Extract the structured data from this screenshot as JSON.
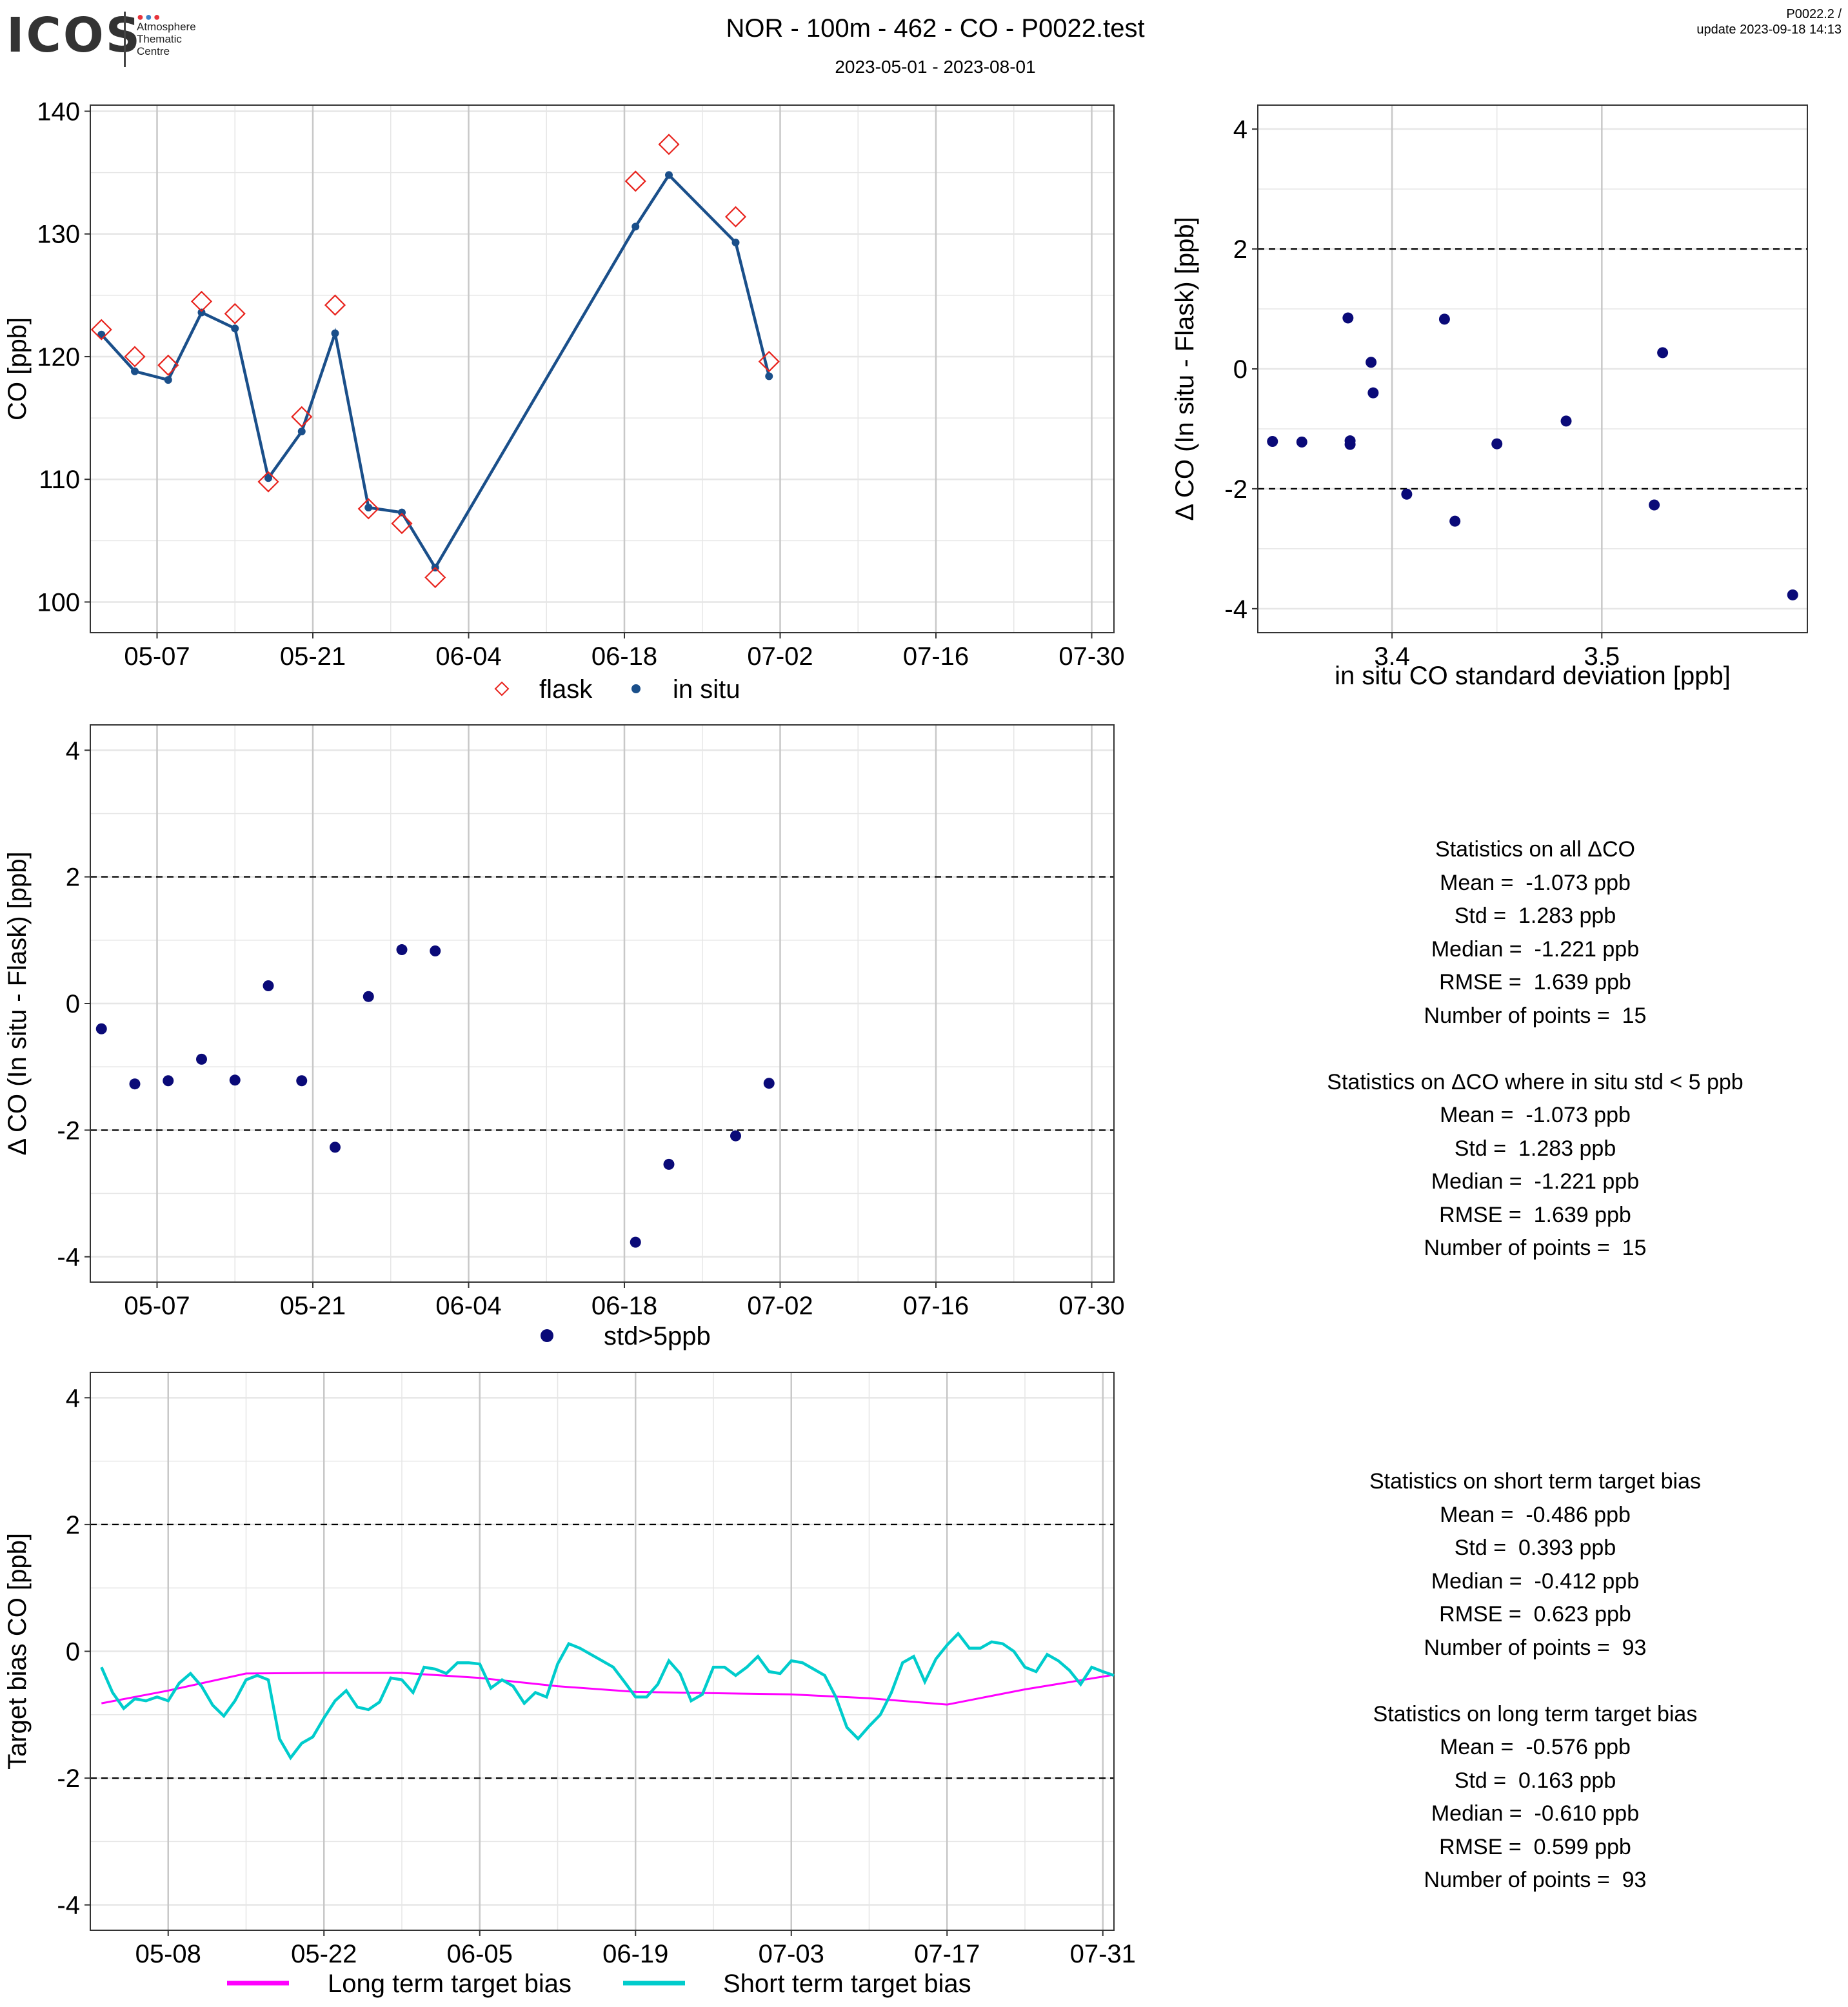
{
  "header": {
    "logo": "ICOS",
    "logo_subtitle": [
      "Atmosphere",
      "Thematic",
      "Centre"
    ],
    "title": "NOR - 100m - 462 - CO - P0022.test",
    "date_range": "2023-05-01 - 2023-08-01",
    "version": "P0022.2 /",
    "update": "update  2023-09-18 14:13"
  },
  "colors": {
    "flask": "#e8221c",
    "in_situ": "#1a4f8a",
    "delta_point": "#0a0a78",
    "long_term": "#ff00ff",
    "short_term": "#00cccc",
    "grid": "#e6e6e6",
    "grid_major": "#c8c8c8"
  },
  "chart_data": [
    {
      "id": "co_timeseries",
      "type": "line",
      "ylabel": "CO [ppb]",
      "xlim": [
        "2023-05-01",
        "2023-08-01"
      ],
      "ylim": [
        97.5,
        140.5
      ],
      "x_ticks": [
        "05-07",
        "05-21",
        "06-04",
        "06-18",
        "07-02",
        "07-16",
        "07-30"
      ],
      "y_ticks": [
        100,
        110,
        120,
        130,
        140
      ],
      "grid": true,
      "legend_position": "bottom",
      "series": [
        {
          "name": "flask",
          "marker": "diamond",
          "line": false,
          "x": [
            "2023-05-02",
            "2023-05-05",
            "2023-05-08",
            "2023-05-11",
            "2023-05-14",
            "2023-05-17",
            "2023-05-20",
            "2023-05-23",
            "2023-05-26",
            "2023-05-29",
            "2023-06-01",
            "2023-06-19",
            "2023-06-22",
            "2023-06-28",
            "2023-07-01"
          ],
          "values": [
            122.2,
            120.0,
            119.3,
            124.5,
            123.5,
            109.8,
            115.1,
            124.2,
            107.6,
            106.4,
            102.0,
            134.3,
            137.3,
            131.4,
            119.6
          ]
        },
        {
          "name": "in situ",
          "marker": "dot",
          "line": true,
          "x": [
            "2023-05-02",
            "2023-05-05",
            "2023-05-08",
            "2023-05-11",
            "2023-05-14",
            "2023-05-17",
            "2023-05-20",
            "2023-05-23",
            "2023-05-26",
            "2023-05-29",
            "2023-06-01",
            "2023-06-19",
            "2023-06-22",
            "2023-06-28",
            "2023-07-01"
          ],
          "values": [
            121.8,
            118.8,
            118.1,
            123.6,
            122.3,
            110.1,
            113.9,
            121.9,
            107.7,
            107.3,
            102.8,
            130.6,
            134.8,
            129.3,
            118.4
          ]
        }
      ]
    },
    {
      "id": "delta_vs_std",
      "type": "scatter",
      "xlabel": "in situ CO standard deviation [ppb]",
      "ylabel": "Δ CO (In situ - Flask) [ppb]",
      "xlim": [
        3.336,
        3.598
      ],
      "ylim": [
        -4.4,
        4.4
      ],
      "x_ticks": [
        3.4,
        3.5
      ],
      "y_ticks": [
        -4,
        -2,
        0,
        2,
        4
      ],
      "reference_lines": [
        2,
        -2
      ],
      "grid": true,
      "points": {
        "x": [
          3.343,
          3.357,
          3.379,
          3.38,
          3.38,
          3.39,
          3.391,
          3.407,
          3.425,
          3.43,
          3.45,
          3.483,
          3.525,
          3.529,
          3.591
        ],
        "y": [
          -1.21,
          -1.22,
          0.85,
          -1.2,
          -1.26,
          0.11,
          -0.4,
          -2.09,
          0.83,
          -2.54,
          -1.25,
          -0.87,
          -2.27,
          0.27,
          -3.77
        ]
      }
    },
    {
      "id": "delta_timeseries",
      "type": "scatter",
      "ylabel": "Δ CO (In situ - Flask) [ppb]",
      "xlim": [
        "2023-05-01",
        "2023-08-01"
      ],
      "ylim": [
        -4.4,
        4.4
      ],
      "x_ticks": [
        "05-07",
        "05-21",
        "06-04",
        "06-18",
        "07-02",
        "07-16",
        "07-30"
      ],
      "y_ticks": [
        -4,
        -2,
        0,
        2,
        4
      ],
      "reference_lines": [
        2,
        -2
      ],
      "grid": true,
      "legend_position": "bottom",
      "series": [
        {
          "name": "std>5ppb",
          "x": [
            "2023-05-02",
            "2023-05-05",
            "2023-05-08",
            "2023-05-11",
            "2023-05-14",
            "2023-05-17",
            "2023-05-20",
            "2023-05-23",
            "2023-05-26",
            "2023-05-29",
            "2023-06-01",
            "2023-06-19",
            "2023-06-22",
            "2023-06-28",
            "2023-07-01"
          ],
          "values": [
            -0.4,
            -1.27,
            -1.22,
            -0.88,
            -1.21,
            0.28,
            -1.22,
            -2.27,
            0.11,
            0.85,
            0.83,
            -3.77,
            -2.54,
            -2.09,
            -1.26
          ]
        }
      ]
    },
    {
      "id": "target_bias",
      "type": "line",
      "ylabel": "Target bias CO [ppb]",
      "xlim": [
        "2023-05-01",
        "2023-08-01"
      ],
      "ylim": [
        -4.4,
        4.4
      ],
      "x_ticks": [
        "05-08",
        "05-22",
        "06-05",
        "06-19",
        "07-03",
        "07-17",
        "07-31"
      ],
      "y_ticks": [
        -4,
        -2,
        0,
        2,
        4
      ],
      "reference_lines": [
        2,
        -2
      ],
      "grid": true,
      "legend_position": "bottom",
      "series": [
        {
          "name": "Long term target bias",
          "x": [
            "2023-05-02",
            "2023-05-08",
            "2023-05-15",
            "2023-05-22",
            "2023-05-29",
            "2023-06-05",
            "2023-06-12",
            "2023-06-19",
            "2023-06-26",
            "2023-07-03",
            "2023-07-10",
            "2023-07-17",
            "2023-07-24",
            "2023-08-01"
          ],
          "values": [
            -0.82,
            -0.62,
            -0.35,
            -0.34,
            -0.34,
            -0.42,
            -0.55,
            -0.64,
            -0.66,
            -0.68,
            -0.74,
            -0.84,
            -0.6,
            -0.37
          ]
        },
        {
          "name": "Short term target bias",
          "x": [
            "2023-05-02",
            "2023-05-03",
            "2023-05-04",
            "2023-05-05",
            "2023-05-06",
            "2023-05-07",
            "2023-05-08",
            "2023-05-09",
            "2023-05-10",
            "2023-05-11",
            "2023-05-12",
            "2023-05-13",
            "2023-05-14",
            "2023-05-15",
            "2023-05-16",
            "2023-05-17",
            "2023-05-18",
            "2023-05-19",
            "2023-05-20",
            "2023-05-21",
            "2023-05-22",
            "2023-05-23",
            "2023-05-24",
            "2023-05-25",
            "2023-05-26",
            "2023-05-27",
            "2023-05-28",
            "2023-05-29",
            "2023-05-30",
            "2023-05-31",
            "2023-06-01",
            "2023-06-02",
            "2023-06-03",
            "2023-06-04",
            "2023-06-05",
            "2023-06-06",
            "2023-06-07",
            "2023-06-08",
            "2023-06-09",
            "2023-06-10",
            "2023-06-11",
            "2023-06-12",
            "2023-06-13",
            "2023-06-14",
            "2023-06-15",
            "2023-06-16",
            "2023-06-17",
            "2023-06-18",
            "2023-06-19",
            "2023-06-20",
            "2023-06-21",
            "2023-06-22",
            "2023-06-23",
            "2023-06-24",
            "2023-06-25",
            "2023-06-26",
            "2023-06-27",
            "2023-06-28",
            "2023-06-29",
            "2023-06-30",
            "2023-07-01",
            "2023-07-02",
            "2023-07-03",
            "2023-07-04",
            "2023-07-05",
            "2023-07-06",
            "2023-07-07",
            "2023-07-08",
            "2023-07-09",
            "2023-07-10",
            "2023-07-11",
            "2023-07-12",
            "2023-07-13",
            "2023-07-14",
            "2023-07-15",
            "2023-07-16",
            "2023-07-17",
            "2023-07-18",
            "2023-07-19",
            "2023-07-20",
            "2023-07-21",
            "2023-07-22",
            "2023-07-23",
            "2023-07-24",
            "2023-07-25",
            "2023-07-26",
            "2023-07-27",
            "2023-07-28",
            "2023-07-29",
            "2023-07-30",
            "2023-07-31",
            "2023-08-01"
          ],
          "values": [
            -0.25,
            -0.65,
            -0.9,
            -0.75,
            -0.78,
            -0.72,
            -0.78,
            -0.5,
            -0.35,
            -0.55,
            -0.85,
            -1.02,
            -0.78,
            -0.45,
            -0.38,
            -0.45,
            -1.38,
            -1.68,
            -1.45,
            -1.35,
            -1.05,
            -0.78,
            -0.62,
            -0.88,
            -0.92,
            -0.8,
            -0.42,
            -0.45,
            -0.65,
            -0.25,
            -0.28,
            -0.35,
            -0.18,
            -0.18,
            -0.2,
            -0.58,
            -0.45,
            -0.55,
            -0.82,
            -0.65,
            -0.72,
            -0.2,
            0.12,
            0.05,
            -0.05,
            -0.15,
            -0.25,
            -0.48,
            -0.72,
            -0.72,
            -0.52,
            -0.15,
            -0.35,
            -0.78,
            -0.68,
            -0.25,
            -0.25,
            -0.38,
            -0.25,
            -0.08,
            -0.32,
            -0.35,
            -0.15,
            -0.18,
            -0.28,
            -0.38,
            -0.72,
            -1.2,
            -1.38,
            -1.18,
            -1.0,
            -0.65,
            -0.18,
            -0.08,
            -0.48,
            -0.12,
            0.1,
            0.28,
            0.05,
            0.05,
            0.15,
            0.12,
            0.0,
            -0.25,
            -0.32,
            -0.05,
            -0.15,
            -0.3,
            -0.52,
            -0.25,
            -0.32,
            -0.38
          ]
        }
      ]
    }
  ],
  "stats_delta": [
    "Statistics on all ΔCO",
    "Mean =  -1.073 ppb",
    "Std =  1.283 ppb",
    "Median =  -1.221 ppb",
    "RMSE =  1.639 ppb",
    "Number of points =  15",
    "",
    "Statistics on ΔCO where in situ std < 5 ppb",
    "Mean =  -1.073 ppb",
    "Std =  1.283 ppb",
    "Median =  -1.221 ppb",
    "RMSE =  1.639 ppb",
    "Number of points =  15"
  ],
  "stats_target": [
    "Statistics on short term target bias",
    "Mean =  -0.486 ppb",
    "Std =  0.393 ppb",
    "Median =  -0.412 ppb",
    "RMSE =  0.623 ppb",
    "Number of points =  93",
    "",
    "Statistics on long term target bias",
    "Mean =  -0.576 ppb",
    "Std =  0.163 ppb",
    "Median =  -0.610 ppb",
    "RMSE =  0.599 ppb",
    "Number of points =  93"
  ]
}
